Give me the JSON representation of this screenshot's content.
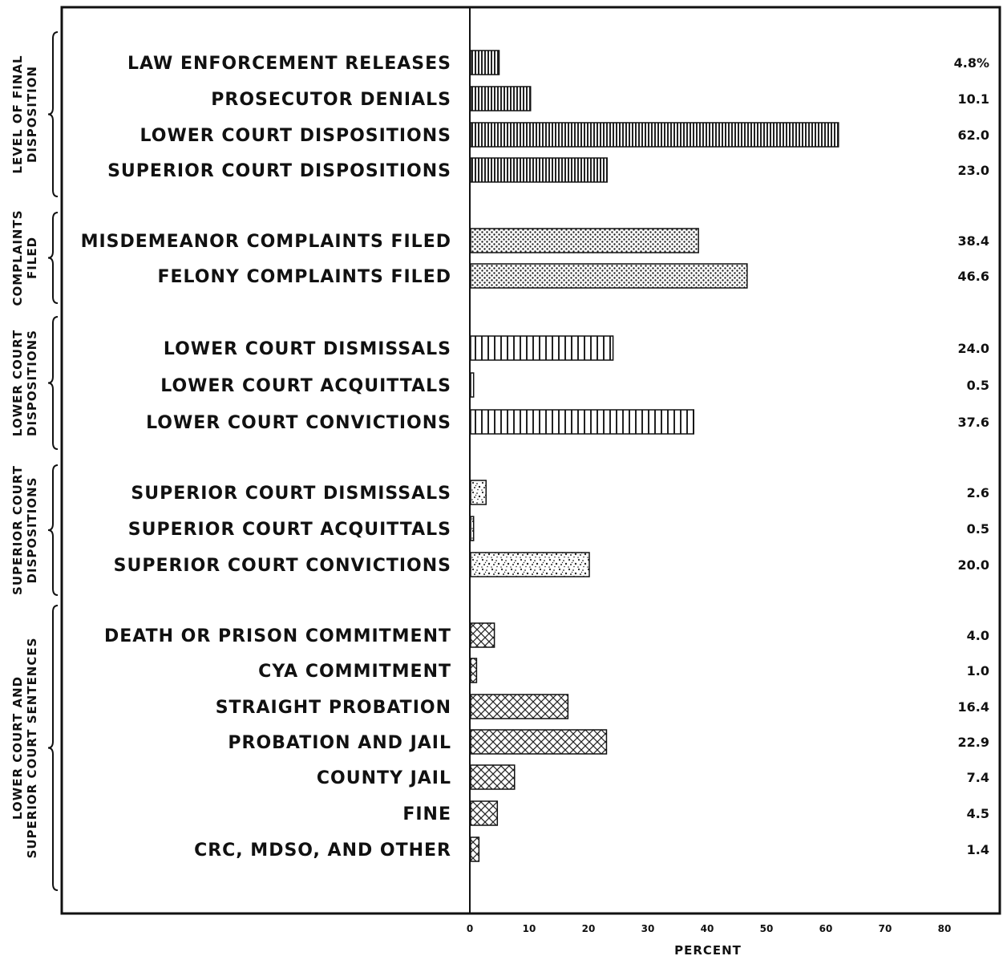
{
  "chart_data": {
    "type": "bar",
    "orientation": "horizontal",
    "xlabel": "PERCENT",
    "xlim": [
      0,
      80
    ],
    "xticks": [
      "0",
      "10",
      "20",
      "30",
      "40",
      "50",
      "60",
      "70",
      "80"
    ],
    "groups": [
      {
        "name_lines": [
          "LEVEL OF FINAL",
          "DISPOSITION"
        ],
        "pattern": "dense-vertical",
        "bars": [
          {
            "label": "LAW ENFORCEMENT RELEASES",
            "value": 4.8,
            "value_label": "4.8%"
          },
          {
            "label": "PROSECUTOR DENIALS",
            "value": 10.1,
            "value_label": "10.1"
          },
          {
            "label": "LOWER COURT DISPOSITIONS",
            "value": 62.0,
            "value_label": "62.0"
          },
          {
            "label": "SUPERIOR COURT DISPOSITIONS",
            "value": 23.0,
            "value_label": "23.0"
          }
        ]
      },
      {
        "name_lines": [
          "COMPLAINTS",
          "FILED"
        ],
        "pattern": "dots",
        "bars": [
          {
            "label": "MISDEMEANOR COMPLAINTS FILED",
            "value": 38.4,
            "value_label": "38.4"
          },
          {
            "label": "FELONY COMPLAINTS FILED",
            "value": 46.6,
            "value_label": "46.6"
          }
        ]
      },
      {
        "name_lines": [
          "LOWER COURT",
          "DISPOSITIONS"
        ],
        "pattern": "wide-vertical",
        "bars": [
          {
            "label": "LOWER COURT DISMISSALS",
            "value": 24.0,
            "value_label": "24.0"
          },
          {
            "label": "LOWER COURT ACQUITTALS",
            "value": 0.5,
            "value_label": "0.5"
          },
          {
            "label": "LOWER COURT CONVICTIONS",
            "value": 37.6,
            "value_label": "37.6"
          }
        ]
      },
      {
        "name_lines": [
          "SUPERIOR COURT",
          "DISPOSITIONS"
        ],
        "pattern": "speckle",
        "bars": [
          {
            "label": "SUPERIOR COURT DISMISSALS",
            "value": 2.6,
            "value_label": "2.6"
          },
          {
            "label": "SUPERIOR COURT ACQUITTALS",
            "value": 0.5,
            "value_label": "0.5"
          },
          {
            "label": "SUPERIOR COURT CONVICTIONS",
            "value": 20.0,
            "value_label": "20.0"
          }
        ]
      },
      {
        "name_lines": [
          "LOWER COURT AND",
          "SUPERIOR COURT SENTENCES"
        ],
        "pattern": "crosshatch",
        "bars": [
          {
            "label": "DEATH OR PRISON COMMITMENT",
            "value": 4.0,
            "value_label": "4.0"
          },
          {
            "label": "CYA COMMITMENT",
            "value": 1.0,
            "value_label": "1.0"
          },
          {
            "label": "STRAIGHT PROBATION",
            "value": 16.4,
            "value_label": "16.4"
          },
          {
            "label": "PROBATION AND JAIL",
            "value": 22.9,
            "value_label": "22.9"
          },
          {
            "label": "COUNTY JAIL",
            "value": 7.4,
            "value_label": "7.4"
          },
          {
            "label": "FINE",
            "value": 4.5,
            "value_label": "4.5"
          },
          {
            "label": "CRC, MDSO, AND OTHER",
            "value": 1.4,
            "value_label": "1.4"
          }
        ]
      }
    ]
  }
}
